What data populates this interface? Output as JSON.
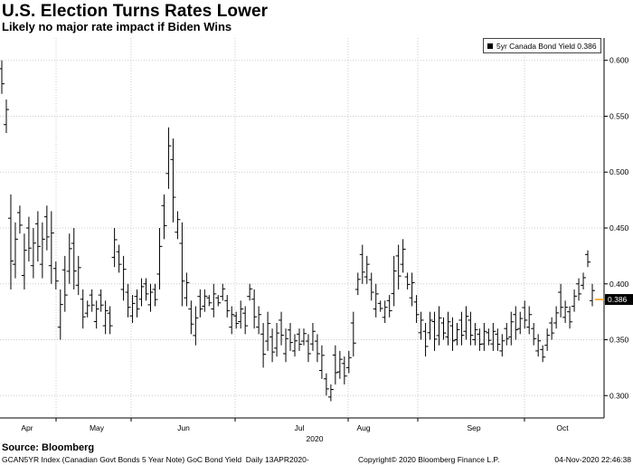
{
  "header": {
    "title": "U.S. Election Turns Rates Lower",
    "subtitle": "Likely no major rate impact if Biden Wins"
  },
  "legend": {
    "label": "5yr Canada Bond Yield 0.386"
  },
  "footer": {
    "source": "Source:  Bloomberg",
    "index_desc": "GCAN5YR Index (Canadian Govt Bonds 5 Year Note) GoC Bond Yield  Daily 13APR2020-",
    "copyright": "Copyright© 2020 Bloomberg Finance L.P.",
    "timestamp": "04-Nov-2020 22:46:38"
  },
  "chart_data": {
    "type": "ohlc",
    "series": [
      {
        "name": "5yr Canada Bond Yield",
        "last": 0.386
      }
    ],
    "last_value_label": "0.386",
    "x_month_labels": [
      "Apr",
      "May",
      "Jun",
      "Jul",
      "Aug",
      "Sep",
      "Oct"
    ],
    "x_year_label": "2020",
    "ylim": [
      0.28,
      0.62
    ],
    "y_ticks": [
      0.3,
      0.35,
      0.4,
      0.45,
      0.5,
      0.55,
      0.6
    ],
    "y_tick_labels": [
      "0.300",
      "0.350",
      "0.400",
      "0.450",
      "0.500",
      "0.550",
      "0.600"
    ],
    "gridlines": true,
    "colors": {
      "bars": "#000000",
      "grid": "#cccccc",
      "last_value_marker": "#f39c12"
    },
    "bars_hl": [
      [
        0.57,
        0.6
      ],
      [
        0.535,
        0.565
      ],
      [
        0.395,
        0.48
      ],
      [
        0.405,
        0.455
      ],
      [
        0.445,
        0.47
      ],
      [
        0.395,
        0.445
      ],
      [
        0.42,
        0.46
      ],
      [
        0.405,
        0.45
      ],
      [
        0.42,
        0.465
      ],
      [
        0.405,
        0.455
      ],
      [
        0.43,
        0.47
      ],
      [
        0.4,
        0.465
      ],
      [
        0.395,
        0.42
      ],
      [
        0.35,
        0.395
      ],
      [
        0.375,
        0.425
      ],
      [
        0.4,
        0.445
      ],
      [
        0.395,
        0.45
      ],
      [
        0.39,
        0.425
      ],
      [
        0.36,
        0.395
      ],
      [
        0.37,
        0.385
      ],
      [
        0.375,
        0.395
      ],
      [
        0.36,
        0.385
      ],
      [
        0.375,
        0.395
      ],
      [
        0.355,
        0.385
      ],
      [
        0.355,
        0.38
      ],
      [
        0.415,
        0.45
      ],
      [
        0.41,
        0.435
      ],
      [
        0.385,
        0.425
      ],
      [
        0.37,
        0.4
      ],
      [
        0.365,
        0.39
      ],
      [
        0.37,
        0.395
      ],
      [
        0.38,
        0.405
      ],
      [
        0.385,
        0.405
      ],
      [
        0.375,
        0.4
      ],
      [
        0.38,
        0.4
      ],
      [
        0.395,
        0.45
      ],
      [
        0.44,
        0.48
      ],
      [
        0.485,
        0.54
      ],
      [
        0.455,
        0.53
      ],
      [
        0.44,
        0.465
      ],
      [
        0.38,
        0.455
      ],
      [
        0.38,
        0.41
      ],
      [
        0.355,
        0.385
      ],
      [
        0.345,
        0.38
      ],
      [
        0.37,
        0.395
      ],
      [
        0.375,
        0.395
      ],
      [
        0.38,
        0.39
      ],
      [
        0.37,
        0.4
      ],
      [
        0.38,
        0.39
      ],
      [
        0.385,
        0.4
      ],
      [
        0.37,
        0.39
      ],
      [
        0.355,
        0.38
      ],
      [
        0.36,
        0.375
      ],
      [
        0.36,
        0.385
      ],
      [
        0.355,
        0.38
      ],
      [
        0.385,
        0.4
      ],
      [
        0.36,
        0.395
      ],
      [
        0.355,
        0.38
      ],
      [
        0.325,
        0.365
      ],
      [
        0.34,
        0.375
      ],
      [
        0.33,
        0.36
      ],
      [
        0.335,
        0.365
      ],
      [
        0.345,
        0.375
      ],
      [
        0.33,
        0.36
      ],
      [
        0.34,
        0.365
      ],
      [
        0.335,
        0.355
      ],
      [
        0.34,
        0.36
      ],
      [
        0.345,
        0.36
      ],
      [
        0.33,
        0.355
      ],
      [
        0.34,
        0.365
      ],
      [
        0.33,
        0.355
      ],
      [
        0.315,
        0.345
      ],
      [
        0.3,
        0.32
      ],
      [
        0.295,
        0.31
      ],
      [
        0.31,
        0.345
      ],
      [
        0.315,
        0.34
      ],
      [
        0.31,
        0.335
      ],
      [
        0.32,
        0.34
      ],
      [
        0.335,
        0.375
      ],
      [
        0.39,
        0.41
      ],
      [
        0.4,
        0.435
      ],
      [
        0.4,
        0.425
      ],
      [
        0.385,
        0.41
      ],
      [
        0.37,
        0.4
      ],
      [
        0.375,
        0.385
      ],
      [
        0.365,
        0.385
      ],
      [
        0.37,
        0.39
      ],
      [
        0.38,
        0.425
      ],
      [
        0.395,
        0.435
      ],
      [
        0.41,
        0.44
      ],
      [
        0.395,
        0.41
      ],
      [
        0.38,
        0.41
      ],
      [
        0.365,
        0.39
      ],
      [
        0.35,
        0.375
      ],
      [
        0.335,
        0.365
      ],
      [
        0.35,
        0.375
      ],
      [
        0.34,
        0.375
      ],
      [
        0.345,
        0.38
      ],
      [
        0.35,
        0.37
      ],
      [
        0.345,
        0.375
      ],
      [
        0.34,
        0.37
      ],
      [
        0.345,
        0.365
      ],
      [
        0.345,
        0.375
      ],
      [
        0.35,
        0.38
      ],
      [
        0.345,
        0.375
      ],
      [
        0.345,
        0.365
      ],
      [
        0.34,
        0.36
      ],
      [
        0.34,
        0.365
      ],
      [
        0.345,
        0.36
      ],
      [
        0.34,
        0.365
      ],
      [
        0.34,
        0.36
      ],
      [
        0.335,
        0.355
      ],
      [
        0.345,
        0.365
      ],
      [
        0.345,
        0.375
      ],
      [
        0.35,
        0.38
      ],
      [
        0.355,
        0.375
      ],
      [
        0.36,
        0.385
      ],
      [
        0.355,
        0.38
      ],
      [
        0.345,
        0.365
      ],
      [
        0.335,
        0.355
      ],
      [
        0.33,
        0.345
      ],
      [
        0.34,
        0.36
      ],
      [
        0.35,
        0.37
      ],
      [
        0.36,
        0.38
      ],
      [
        0.37,
        0.4
      ],
      [
        0.365,
        0.385
      ],
      [
        0.36,
        0.38
      ],
      [
        0.375,
        0.395
      ],
      [
        0.385,
        0.405
      ],
      [
        0.395,
        0.41
      ],
      [
        0.415,
        0.43
      ],
      [
        0.38,
        0.4
      ]
    ]
  }
}
